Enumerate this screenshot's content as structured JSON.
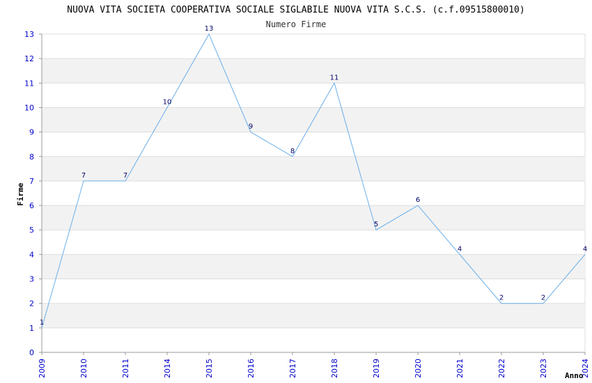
{
  "chart_data": {
    "type": "line",
    "title": "NUOVA VITA SOCIETA COOPERATIVA SOCIALE SIGLABILE NUOVA VITA S.C.S. (c.f.09515800010)",
    "subtitle": "Numero Firme",
    "xlabel": "Anno",
    "ylabel": "Firme",
    "categories": [
      "2009",
      "2010",
      "2011",
      "2014",
      "2015",
      "2016",
      "2017",
      "2018",
      "2019",
      "2020",
      "2021",
      "2022",
      "2023",
      "2024"
    ],
    "series": [
      {
        "values": [
          1,
          7,
          7,
          10,
          13,
          9,
          8,
          11,
          5,
          6,
          4,
          2,
          2,
          4
        ]
      }
    ],
    "ylim": [
      0,
      13
    ],
    "yticks": [
      0,
      1,
      2,
      3,
      4,
      5,
      6,
      7,
      8,
      9,
      10,
      11,
      12,
      13
    ],
    "grid": true,
    "colors": {
      "line": "#6aaee8",
      "band": "#f2f2f2",
      "grid": "#dddddd",
      "tick_text": "#0000cc",
      "data_label": "#000066"
    }
  }
}
